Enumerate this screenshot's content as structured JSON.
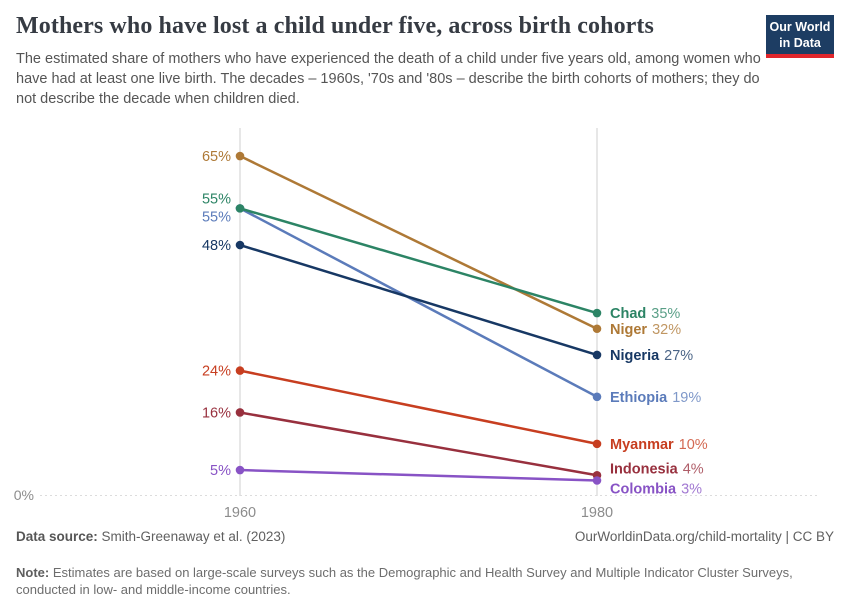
{
  "header": {
    "title": "Mothers who have lost a child under five, across birth cohorts",
    "subtitle": "The estimated share of mothers who have experienced the death of a child under five years old, among women who have had at least one live birth. The decades – 1960s, '70s and '80s – describe the birth cohorts of mothers; they do not describe the decade when children died.",
    "logo": {
      "line1": "Our World",
      "line2": "in Data",
      "bg_color": "#1D3D63",
      "accent_color": "#E0262C"
    }
  },
  "chart_data": {
    "type": "line",
    "variant": "slope",
    "x": [
      1960,
      1980
    ],
    "x_labels": [
      "1960",
      "1980"
    ],
    "y_zero_label": "0%",
    "ylim": [
      0,
      70
    ],
    "value_suffix": "%",
    "grid": "dashed zero baseline only",
    "legend_position": "inline-right",
    "axis_color": "#cfcfcf",
    "tick_label_color": "#8c8c8c",
    "series": [
      {
        "name": "Niger",
        "values": [
          65,
          32
        ],
        "color": "#AE7936"
      },
      {
        "name": "Ethiopia",
        "values": [
          55,
          19
        ],
        "color": "#5B7BBA",
        "start_dy": 8
      },
      {
        "name": "Chad",
        "values": [
          55,
          35
        ],
        "color": "#2C8465",
        "start_dy": -10
      },
      {
        "name": "Nigeria",
        "values": [
          48,
          27
        ],
        "color": "#173864"
      },
      {
        "name": "Myanmar",
        "values": [
          24,
          10
        ],
        "color": "#C73E20"
      },
      {
        "name": "Indonesia",
        "values": [
          16,
          4
        ],
        "color": "#98303E",
        "end_dy": -7
      },
      {
        "name": "Colombia",
        "values": [
          5,
          3
        ],
        "color": "#8853C5",
        "end_dy": 8
      }
    ]
  },
  "footer": {
    "source_label": "Data source:",
    "source_value": "Smith-Greenaway et al. (2023)",
    "citation": "OurWorldinData.org/child-mortality | CC BY",
    "note_label": "Note:",
    "note_value": "Estimates are based on large-scale surveys such as the Demographic and Health Survey and Multiple Indicator Cluster Surveys, conducted in low- and middle-income countries."
  }
}
